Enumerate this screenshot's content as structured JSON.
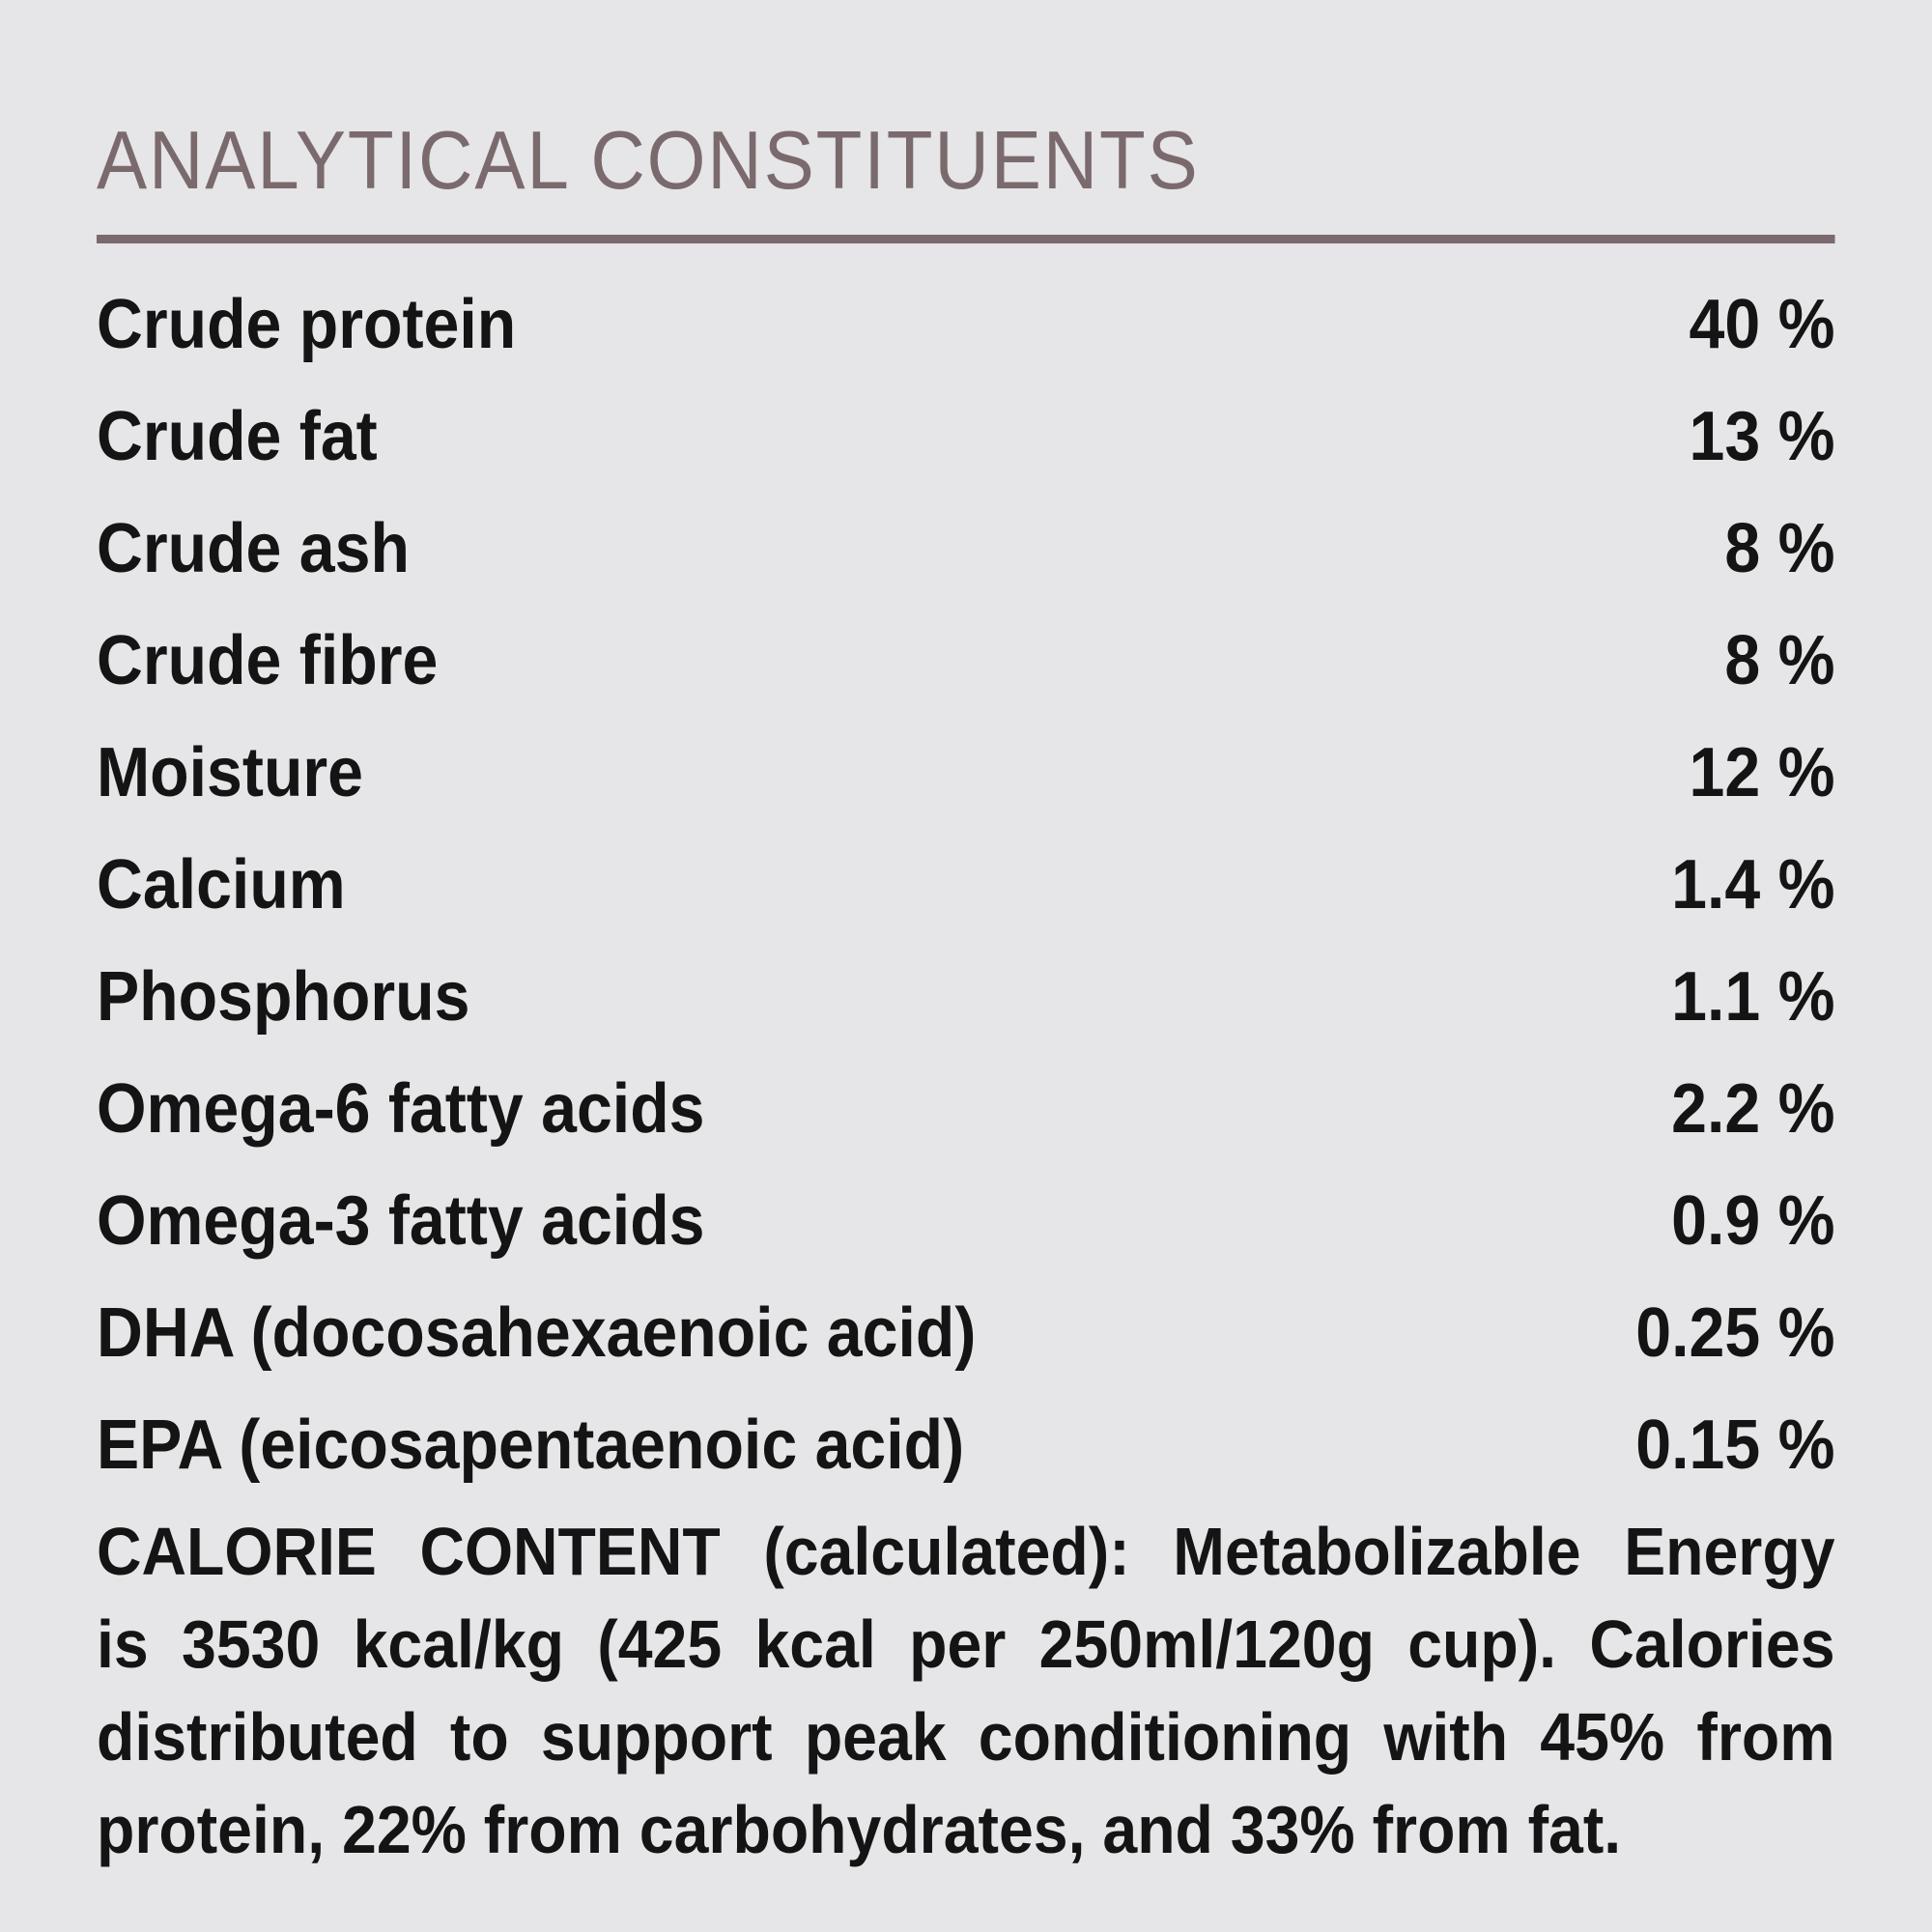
{
  "panel": {
    "title": "ANALYTICAL CONSTITUENTS",
    "colors": {
      "background": "#e6e5e7",
      "accent": "#7a6a6d",
      "text": "#141414"
    }
  },
  "table": {
    "rows": [
      {
        "label": "Crude protein",
        "value": "40 %"
      },
      {
        "label": "Crude fat",
        "value": "13 %"
      },
      {
        "label": "Crude ash",
        "value": "8 %"
      },
      {
        "label": "Crude fibre",
        "value": "8 %"
      },
      {
        "label": "Moisture",
        "value": "12 %"
      },
      {
        "label": "Calcium",
        "value": "1.4 %"
      },
      {
        "label": "Phosphorus",
        "value": "1.1 %"
      },
      {
        "label": "Omega-6 fatty acids",
        "value": "2.2 %"
      },
      {
        "label": "Omega-3 fatty acids",
        "value": "0.9 %"
      },
      {
        "label": "DHA (docosahexaenoic acid)",
        "value": "0.25 %"
      },
      {
        "label": "EPA (eicosapentaenoic acid)",
        "value": "0.15 %"
      }
    ]
  },
  "calorie_content": {
    "full_text": "CALORIE CONTENT (calculated): Metabolizable Energy is 3530 kcal/kg (425 kcal per 250ml/120g cup). Calories distributed to support peak conditioning with 45% from protein, 22% from carbohydrates, and 33% from fat.",
    "lines": [
      "CALORIE CONTENT (calculated): Metabolizable Energy",
      "is 3530 kcal/kg (425 kcal per 250ml/120g cup). Calories",
      "distributed to support peak conditioning with 45% from",
      "protein, 22% from carbohydrates, and 33% from fat."
    ]
  }
}
